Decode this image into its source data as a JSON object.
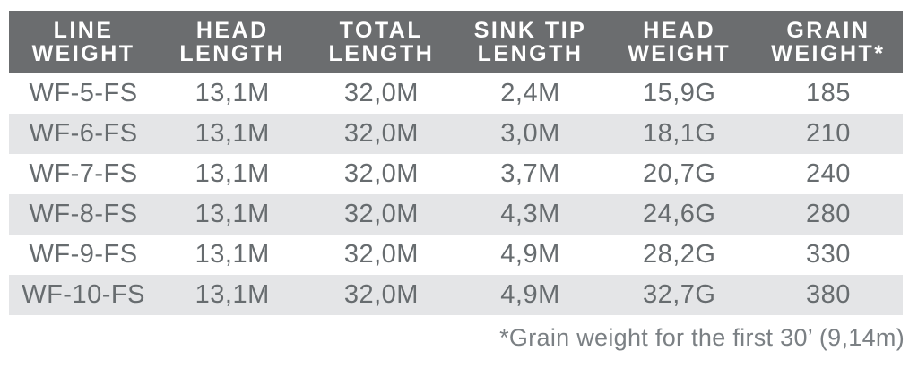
{
  "table": {
    "columns": [
      {
        "line1": "LINE",
        "line2": "WEIGHT"
      },
      {
        "line1": "HEAD",
        "line2": "LENGTH"
      },
      {
        "line1": "TOTAL",
        "line2": "LENGTH"
      },
      {
        "line1": "SINK TIP",
        "line2": "LENGTH"
      },
      {
        "line1": "HEAD",
        "line2": "WEIGHT"
      },
      {
        "line1": "GRAIN",
        "line2": "WEIGHT*"
      }
    ],
    "rows": [
      [
        "WF-5-FS",
        "13,1M",
        "32,0M",
        "2,4M",
        "15,9G",
        "185"
      ],
      [
        "WF-6-FS",
        "13,1M",
        "32,0M",
        "3,0M",
        "18,1G",
        "210"
      ],
      [
        "WF-7-FS",
        "13,1M",
        "32,0M",
        "3,7M",
        "20,7G",
        "240"
      ],
      [
        "WF-8-FS",
        "13,1M",
        "32,0M",
        "4,3M",
        "24,6G",
        "280"
      ],
      [
        "WF-9-FS",
        "13,1M",
        "32,0M",
        "4,9M",
        "28,2G",
        "330"
      ],
      [
        "WF-10-FS",
        "13,1M",
        "32,0M",
        "4,9M",
        "32,7G",
        "380"
      ]
    ],
    "footnote": "*Grain weight for the first 30’ (9,14m)"
  },
  "colors": {
    "header_bg": "#6b6d6f",
    "header_text": "#ffffff",
    "stripe_bg": "#e4e5e7",
    "row_text": "#676c6f",
    "footnote_text": "#7b8084"
  }
}
